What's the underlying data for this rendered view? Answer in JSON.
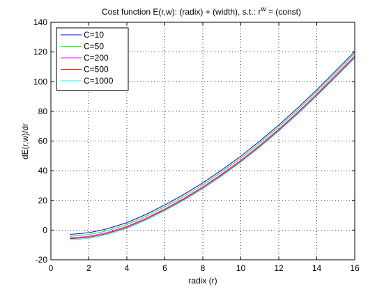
{
  "chart_data": {
    "type": "line",
    "title": "Cost function E(r,w): (radix) + (width), s.t.: r",
    "title_superscript": "w",
    "title_suffix": " = (const)",
    "xlabel": "radix (r)",
    "ylabel": "dE(r,w)/dr",
    "xlim": [
      0,
      16
    ],
    "ylim": [
      -20,
      140
    ],
    "xticks": [
      0,
      2,
      4,
      6,
      8,
      10,
      12,
      14,
      16
    ],
    "yticks": [
      -20,
      0,
      20,
      40,
      60,
      80,
      100,
      120,
      140
    ],
    "grid": true,
    "legend_position": "top-left",
    "x": [
      1,
      1.5,
      2,
      2.5,
      3,
      4,
      5,
      6,
      7,
      8,
      9,
      10,
      11,
      12,
      13,
      14,
      15,
      16
    ],
    "series": [
      {
        "name": "C=10",
        "color": "#0000ff",
        "values": [
          -2.9,
          -2.4,
          -1.7,
          -0.5,
          1.0,
          5.0,
          10.5,
          17.0,
          24.0,
          31.8,
          40.5,
          49.8,
          60.0,
          70.8,
          82.3,
          94.5,
          107.3,
          120.3
        ]
      },
      {
        "name": "C=50",
        "color": "#00ff00",
        "values": [
          -4.2,
          -3.7,
          -3.0,
          -1.8,
          -0.3,
          3.7,
          9.2,
          15.7,
          22.7,
          30.5,
          39.2,
          48.5,
          58.7,
          69.5,
          81.0,
          93.2,
          106.0,
          119.0
        ]
      },
      {
        "name": "C=200",
        "color": "#ff00ff",
        "values": [
          -5.2,
          -4.8,
          -4.2,
          -3.0,
          -1.5,
          2.4,
          7.9,
          14.3,
          21.3,
          29.1,
          37.8,
          47.1,
          57.2,
          68.0,
          79.5,
          91.7,
          104.4,
          117.4
        ]
      },
      {
        "name": "C=500",
        "color": "#ff0000",
        "values": [
          -5.8,
          -5.4,
          -4.8,
          -3.6,
          -2.1,
          1.8,
          7.3,
          13.7,
          20.7,
          28.5,
          37.1,
          46.4,
          56.5,
          67.3,
          78.8,
          91.0,
          103.6,
          116.6
        ]
      },
      {
        "name": "C=1000",
        "color": "#00ffff",
        "values": [
          -6.5,
          -6.1,
          -5.5,
          -4.3,
          -2.8,
          1.1,
          6.6,
          13.0,
          20.0,
          27.8,
          36.4,
          45.7,
          55.8,
          66.6,
          78.1,
          90.3,
          102.9,
          115.9
        ]
      }
    ]
  }
}
